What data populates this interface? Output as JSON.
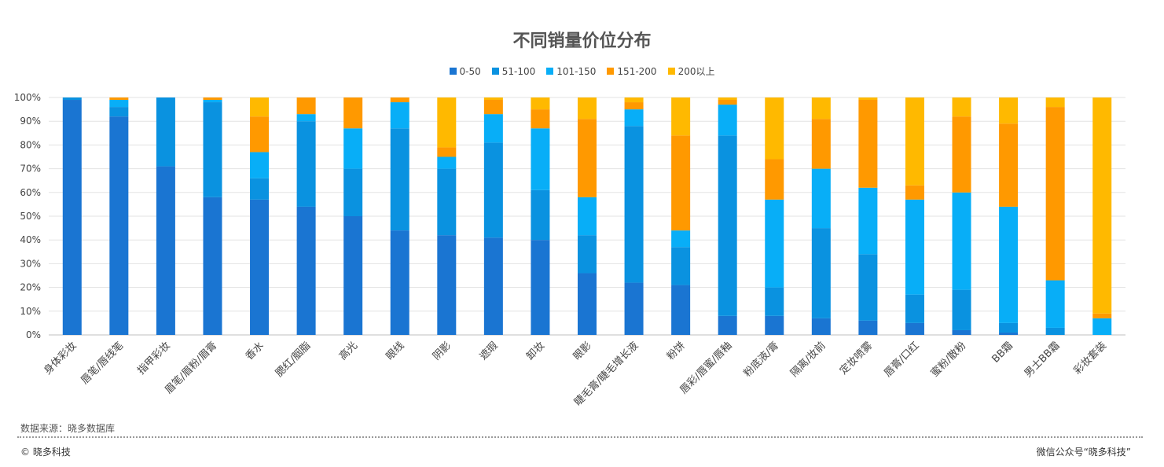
{
  "chart_data": {
    "type": "bar",
    "stacked": true,
    "title": "不同销量价位分布",
    "categories": [
      "身体彩妆",
      "唇笔/唇线笔",
      "指甲彩妆",
      "眉笔/眉粉/眉膏",
      "香水",
      "腮红/胭脂",
      "高光",
      "眼线",
      "阴影",
      "遮瑕",
      "卸妆",
      "眼影",
      "睫毛膏/睫毛增长液",
      "粉饼",
      "唇彩/唇蜜/唇釉",
      "粉底液/膏",
      "隔离/妆前",
      "定妆喷雾",
      "唇膏/口红",
      "蜜粉/散粉",
      "BB霜",
      "男士BB霜",
      "彩妆套装"
    ],
    "series": [
      {
        "name": "0-50",
        "color": "#1a75d2",
        "values": [
          99,
          92,
          71,
          58,
          57,
          54,
          50,
          44,
          42,
          41,
          40,
          26,
          22,
          21,
          8,
          8,
          7,
          6,
          5,
          2,
          1,
          0,
          0
        ]
      },
      {
        "name": "51-100",
        "color": "#0a92e0",
        "values": [
          1,
          4,
          29,
          40,
          9,
          36,
          20,
          43,
          28,
          40,
          21,
          16,
          66,
          16,
          76,
          12,
          38,
          28,
          12,
          17,
          4,
          3,
          0
        ]
      },
      {
        "name": "101-150",
        "color": "#08aef7",
        "values": [
          0,
          3,
          0,
          1,
          11,
          3,
          17,
          11,
          5,
          12,
          26,
          16,
          7,
          7,
          13,
          37,
          25,
          28,
          40,
          41,
          49,
          20,
          7
        ]
      },
      {
        "name": "151-200",
        "color": "#ff9900",
        "values": [
          0,
          1,
          0,
          1,
          15,
          7,
          13,
          2,
          4,
          6,
          8,
          33,
          3,
          40,
          2,
          17,
          21,
          37,
          6,
          32,
          35,
          73,
          2
        ]
      },
      {
        "name": "200以上",
        "color": "#ffb900",
        "values": [
          0,
          0,
          0,
          0,
          8,
          0,
          0,
          0,
          21,
          1,
          5,
          9,
          2,
          16,
          1,
          26,
          9,
          1,
          37,
          8,
          11,
          4,
          91
        ]
      }
    ],
    "yticks": [
      "0%",
      "10%",
      "20%",
      "30%",
      "40%",
      "50%",
      "60%",
      "70%",
      "80%",
      "90%",
      "100%"
    ],
    "ylim": [
      0,
      100
    ],
    "legend_position": "top-center",
    "grid": true
  },
  "footer": {
    "source": "数据来源：晓多数据库",
    "copyright": "© 晓多科技",
    "wechat": "微信公众号“晓多科技”"
  }
}
